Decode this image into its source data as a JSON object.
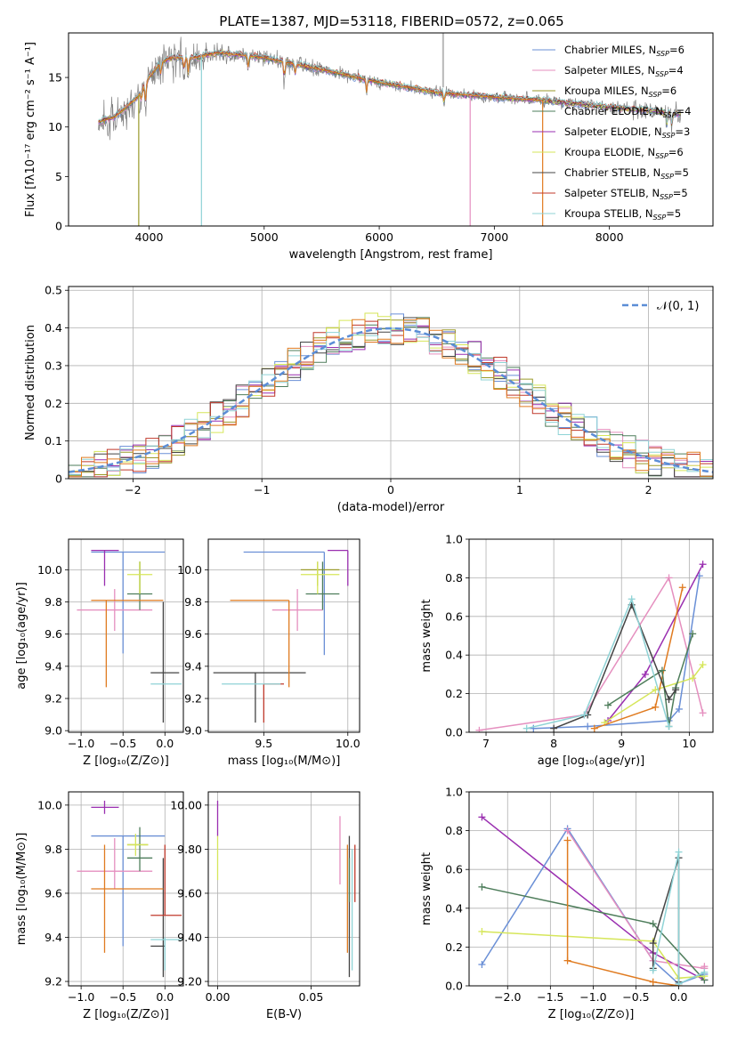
{
  "title": "PLATE=1387, MJD=53118, FIBERID=0572, z=0.065",
  "colors": {
    "CM": "#6a8fd6",
    "SM": "#e58fbf",
    "KM": "#9a9a2a",
    "CE": "#4e7d5b",
    "SE": "#9a2fb0",
    "KE": "#d6e65a",
    "CS": "#444444",
    "SS": "#c0392b",
    "KS": "#8fd3d6",
    "orange": "#e07b20",
    "dash": "#5b8dd6",
    "gray": "#808080",
    "grid": "#b0b0b0"
  },
  "legend_spec": [
    {
      "id": "CM",
      "label": "Chabrier MILES, N",
      "n": "6"
    },
    {
      "id": "SM",
      "label": "Salpeter MILES, N",
      "n": "4"
    },
    {
      "id": "KM",
      "label": "Kroupa MILES, N",
      "n": "6"
    },
    {
      "id": "CE",
      "label": "Chabrier ELODIE, N",
      "n": "4"
    },
    {
      "id": "SE",
      "label": "Salpeter ELODIE, N",
      "n": "3"
    },
    {
      "id": "KE",
      "label": "Kroupa ELODIE, N",
      "n": "6"
    },
    {
      "id": "CS",
      "label": "Chabrier STELIB, N",
      "n": "5"
    },
    {
      "id": "SS",
      "label": "Salpeter STELIB, N",
      "n": "5"
    },
    {
      "id": "KS",
      "label": "Kroupa STELIB, N",
      "n": "5"
    }
  ],
  "legend_resid": "𝒩(0, 1)",
  "chart_data": [
    {
      "id": "spec",
      "type": "line",
      "title": "PLATE=1387, MJD=53118, FIBERID=0572, z=0.065",
      "xlabel": "wavelength [Angstrom, rest frame]",
      "ylabel": "Flux [fλ10⁻¹⁷ erg cm⁻² s⁻¹ A⁻¹]",
      "xlim": [
        3300,
        8900
      ],
      "ylim": [
        0,
        19.5
      ],
      "xticks": [
        4000,
        5000,
        6000,
        7000,
        8000
      ],
      "yticks": [
        0,
        5,
        10,
        15
      ],
      "continuum": [
        [
          3560,
          10.5
        ],
        [
          3700,
          11
        ],
        [
          3900,
          13
        ],
        [
          4000,
          15
        ],
        [
          4100,
          16.5
        ],
        [
          4200,
          17
        ],
        [
          4400,
          17
        ],
        [
          4600,
          17.5
        ],
        [
          5000,
          17
        ],
        [
          5500,
          15.8
        ],
        [
          6000,
          14.5
        ],
        [
          6500,
          13.5
        ],
        [
          7000,
          13
        ],
        [
          7400,
          12.7
        ],
        [
          8000,
          12
        ],
        [
          8500,
          11.5
        ],
        [
          8620,
          11.3
        ]
      ],
      "absorptions": [
        [
          3934,
          12.5
        ],
        [
          3969,
          12.2
        ],
        [
          4102,
          15
        ],
        [
          4304,
          15.5
        ],
        [
          4340,
          15.2
        ],
        [
          4861,
          15.8
        ],
        [
          5175,
          14.5
        ],
        [
          5270,
          15.2
        ],
        [
          5890,
          13.2
        ],
        [
          6563,
          12.3
        ],
        [
          8498,
          10
        ],
        [
          8542,
          9.8
        ],
        [
          8662,
          10.1
        ]
      ],
      "spikes": [
        [
          4455,
          "KS"
        ],
        [
          3910,
          "KM"
        ],
        [
          6790,
          "SM"
        ],
        [
          7420,
          "orange"
        ]
      ]
    },
    {
      "id": "resid",
      "type": "histogram",
      "xlabel": "(data-model)/error",
      "ylabel": "Normed distribution",
      "xlim": [
        -2.5,
        2.5
      ],
      "ylim": [
        0,
        0.51
      ],
      "xticks": [
        -2,
        -1,
        0,
        1,
        2
      ],
      "yticks": [
        0,
        0.1,
        0.2,
        0.3,
        0.4,
        0.5
      ]
    },
    {
      "id": "p1",
      "type": "scatter",
      "xlabel": "Z [log₁₀(Z/Z⊙)]",
      "ylabel": "age  [log₁₀(age/yr)]",
      "xlim": [
        -1.15,
        0.22
      ],
      "ylim": [
        8.99,
        10.19
      ],
      "xticks": [
        -1.0,
        -0.5,
        0.0
      ],
      "yticks": [
        9.0,
        9.2,
        9.4,
        9.6,
        9.8,
        10.0
      ],
      "points": [
        {
          "c": "CM",
          "x": -0.5,
          "y": 10.11,
          "xe": [
            -0.88,
            0.0
          ],
          "ye": [
            9.48,
            10.11
          ]
        },
        {
          "c": "SM",
          "x": -0.6,
          "y": 9.75,
          "xe": [
            -1.05,
            -0.15
          ],
          "ye": [
            9.62,
            9.88
          ]
        },
        {
          "c": "KM",
          "x": -0.3,
          "y": 10.05,
          "xe": [
            -0.3,
            -0.3
          ],
          "ye": [
            9.85,
            10.05
          ]
        },
        {
          "c": "CE",
          "x": -0.3,
          "y": 9.85,
          "xe": [
            -0.45,
            -0.15
          ],
          "ye": [
            9.75,
            10.05
          ]
        },
        {
          "c": "SE",
          "x": -0.72,
          "y": 10.12,
          "xe": [
            -0.88,
            -0.55
          ],
          "ye": [
            9.9,
            10.12
          ]
        },
        {
          "c": "KE",
          "x": -0.3,
          "y": 9.97,
          "xe": [
            -0.45,
            -0.15
          ],
          "ye": [
            9.85,
            10.05
          ]
        },
        {
          "c": "CS",
          "x": -0.02,
          "y": 9.36,
          "xe": [
            -0.17,
            0.17
          ],
          "ye": [
            9.05,
            9.8
          ]
        },
        {
          "c": "SS",
          "x": -0.7,
          "y": 9.8,
          "xe": [
            -0.7,
            -0.7
          ],
          "ye": [
            9.8,
            9.8
          ]
        },
        {
          "c": "KS",
          "x": 0.05,
          "y": 9.29,
          "xe": [
            -0.17,
            0.2
          ],
          "ye": [
            9.29,
            9.29
          ]
        },
        {
          "c": "orange",
          "x": -0.7,
          "y": 9.81,
          "xe": [
            -0.88,
            -0.02
          ],
          "ye": [
            9.27,
            9.81
          ]
        }
      ]
    },
    {
      "id": "p2",
      "type": "scatter",
      "xlabel": "mass [log₁₀(M/M⊙)]",
      "ylabel": "",
      "xlim": [
        9.17,
        10.07
      ],
      "ylim": [
        8.99,
        10.19
      ],
      "xticks": [
        9.5,
        10.0
      ],
      "yticks": [
        9.0,
        9.2,
        9.4,
        9.6,
        9.8,
        10.0
      ],
      "points": [
        {
          "c": "CM",
          "x": 9.86,
          "y": 10.11,
          "xe": [
            9.38,
            9.86
          ],
          "ye": [
            9.47,
            10.11
          ]
        },
        {
          "c": "SM",
          "x": 9.7,
          "y": 9.75,
          "xe": [
            9.55,
            9.85
          ],
          "ye": [
            9.62,
            9.88
          ]
        },
        {
          "c": "KM",
          "x": 9.82,
          "y": 10.0,
          "xe": [
            9.72,
            9.95
          ],
          "ye": [
            9.9,
            10.05
          ]
        },
        {
          "c": "CE",
          "x": 9.85,
          "y": 9.85,
          "xe": [
            9.75,
            9.95
          ],
          "ye": [
            9.75,
            10.05
          ]
        },
        {
          "c": "SE",
          "x": 10.0,
          "y": 10.12,
          "xe": [
            9.88,
            10.0
          ],
          "ye": [
            9.9,
            10.12
          ]
        },
        {
          "c": "KE",
          "x": 9.82,
          "y": 9.97,
          "xe": [
            9.72,
            9.95
          ],
          "ye": [
            9.85,
            10.05
          ]
        },
        {
          "c": "CS",
          "x": 9.45,
          "y": 9.36,
          "xe": [
            9.2,
            9.75
          ],
          "ye": [
            9.05,
            9.36
          ]
        },
        {
          "c": "SS",
          "x": 9.5,
          "y": 9.29,
          "xe": [
            9.5,
            9.62
          ],
          "ye": [
            9.05,
            9.29
          ]
        },
        {
          "c": "KS",
          "x": 9.4,
          "y": 9.29,
          "xe": [
            9.25,
            9.6
          ],
          "ye": [
            9.29,
            9.29
          ]
        },
        {
          "c": "orange",
          "x": 9.65,
          "y": 9.81,
          "xe": [
            9.3,
            9.65
          ],
          "ye": [
            9.27,
            9.81
          ]
        }
      ]
    },
    {
      "id": "p3",
      "type": "line",
      "xlabel": "age  [log₁₀(age/yr)]",
      "ylabel": "mass weight",
      "xlim": [
        6.75,
        10.35
      ],
      "ylim": [
        0,
        1
      ],
      "xticks": [
        7,
        8,
        9,
        10
      ],
      "yticks": [
        0.0,
        0.2,
        0.4,
        0.6,
        0.8,
        1.0
      ],
      "series": [
        {
          "c": "SM",
          "x": [
            6.9,
            8.45,
            9.7,
            10.2
          ],
          "y": [
            0.01,
            0.09,
            0.8,
            0.1
          ]
        },
        {
          "c": "CM",
          "x": [
            7.7,
            8.5,
            9.7,
            9.85,
            10.15
          ],
          "y": [
            0.02,
            0.03,
            0.06,
            0.12,
            0.81
          ]
        },
        {
          "c": "SE",
          "x": [
            8.8,
            9.35,
            10.2
          ],
          "y": [
            0.06,
            0.3,
            0.87
          ]
        },
        {
          "c": "KE",
          "x": [
            8.75,
            9.5,
            10.05,
            10.2
          ],
          "y": [
            0.05,
            0.22,
            0.28,
            0.35
          ]
        },
        {
          "c": "orange",
          "x": [
            8.6,
            9.5,
            9.9
          ],
          "y": [
            0.02,
            0.13,
            0.75
          ]
        },
        {
          "c": "CE",
          "x": [
            8.8,
            9.6,
            9.7,
            9.8,
            10.05
          ],
          "y": [
            0.14,
            0.32,
            0.03,
            0.23,
            0.51
          ]
        },
        {
          "c": "CS",
          "x": [
            8.0,
            8.5,
            9.15,
            9.7,
            9.8
          ],
          "y": [
            0.02,
            0.09,
            0.66,
            0.17,
            0.22
          ]
        },
        {
          "c": "KS",
          "x": [
            7.6,
            8.45,
            9.15,
            9.7
          ],
          "y": [
            0.02,
            0.09,
            0.69,
            0.03
          ]
        }
      ]
    },
    {
      "id": "p4",
      "type": "scatter",
      "xlabel": "Z [log₁₀(Z/Z⊙)]",
      "ylabel": "mass [log₁₀(M/M⊙)]",
      "xlim": [
        -1.15,
        0.22
      ],
      "ylim": [
        9.18,
        10.06
      ],
      "xticks": [
        -1.0,
        -0.5,
        0.0
      ],
      "yticks": [
        9.2,
        9.4,
        9.6,
        9.8,
        10.0
      ],
      "points": [
        {
          "c": "CM",
          "x": -0.5,
          "y": 9.86,
          "xe": [
            -0.88,
            0.0
          ],
          "ye": [
            9.36,
            9.86
          ]
        },
        {
          "c": "SM",
          "x": -0.6,
          "y": 9.7,
          "xe": [
            -1.05,
            -0.15
          ],
          "ye": [
            9.62,
            9.85
          ]
        },
        {
          "c": "KM",
          "x": -0.38,
          "y": 9.82,
          "xe": [
            -0.45,
            -0.2
          ],
          "ye": [
            9.82,
            9.82
          ]
        },
        {
          "c": "CE",
          "x": -0.3,
          "y": 9.76,
          "xe": [
            -0.45,
            -0.15
          ],
          "ye": [
            9.7,
            9.9
          ]
        },
        {
          "c": "SE",
          "x": -0.72,
          "y": 9.99,
          "xe": [
            -0.88,
            -0.55
          ],
          "ye": [
            9.96,
            10.02
          ]
        },
        {
          "c": "KE",
          "x": -0.35,
          "y": 9.82,
          "xe": [
            -0.45,
            -0.2
          ],
          "ye": [
            9.77,
            9.87
          ]
        },
        {
          "c": "CS",
          "x": -0.02,
          "y": 9.36,
          "xe": [
            -0.17,
            0.0
          ],
          "ye": [
            9.22,
            9.76
          ]
        },
        {
          "c": "SS",
          "x": 0.0,
          "y": 9.5,
          "xe": [
            -0.17,
            0.2
          ],
          "ye": [
            9.5,
            9.82
          ]
        },
        {
          "c": "KS",
          "x": 0.0,
          "y": 9.39,
          "xe": [
            -0.17,
            0.2
          ],
          "ye": [
            9.25,
            9.4
          ]
        },
        {
          "c": "orange",
          "x": -0.72,
          "y": 9.62,
          "xe": [
            -0.88,
            -0.02
          ],
          "ye": [
            9.33,
            9.82
          ]
        }
      ]
    },
    {
      "id": "p5",
      "type": "scatter",
      "xlabel": "E(B-V)",
      "ylabel": "",
      "xlim": [
        -0.005,
        0.076
      ],
      "ylim": [
        9.18,
        10.06
      ],
      "xticks": [
        0.0,
        0.05
      ],
      "yticks": [
        9.2,
        9.4,
        9.6,
        9.8,
        10.0
      ],
      "points": [
        {
          "c": "SE",
          "x": 0.0,
          "y": 10.0,
          "xe": [
            0.0,
            0.0
          ],
          "ye": [
            9.86,
            10.02
          ]
        },
        {
          "c": "KE",
          "x": 0.0,
          "y": 9.8,
          "xe": [
            0.0,
            0.0
          ],
          "ye": [
            9.66,
            9.86
          ]
        },
        {
          "c": "SM",
          "x": 0.0655,
          "y": 9.8,
          "xe": [
            0.0655,
            0.0655
          ],
          "ye": [
            9.64,
            9.95
          ]
        },
        {
          "c": "orange",
          "x": 0.0695,
          "y": 9.6,
          "xe": [
            0.0695,
            0.0695
          ],
          "ye": [
            9.33,
            9.82
          ]
        },
        {
          "c": "CS",
          "x": 0.0705,
          "y": 9.5,
          "xe": [
            0.0705,
            0.0705
          ],
          "ye": [
            9.22,
            9.86
          ]
        },
        {
          "c": "KS",
          "x": 0.072,
          "y": 9.4,
          "xe": [
            0.072,
            0.072
          ],
          "ye": [
            9.25,
            9.8
          ]
        },
        {
          "c": "SS",
          "x": 0.0735,
          "y": 9.7,
          "xe": [
            0.0735,
            0.0735
          ],
          "ye": [
            9.56,
            9.82
          ]
        },
        {
          "c": "CE",
          "x": 0.0705,
          "y": 9.7,
          "xe": [
            0.0705,
            0.0705
          ],
          "ye": [
            9.56,
            9.76
          ]
        }
      ]
    },
    {
      "id": "p6",
      "type": "line",
      "xlabel": "Z [log₁₀(Z/Z⊙)]",
      "ylabel": "mass weight",
      "xlim": [
        -2.45,
        0.4
      ],
      "ylim": [
        0,
        1
      ],
      "xticks": [
        -2.0,
        -1.5,
        -1.0,
        -0.5,
        0.0
      ],
      "yticks": [
        0.0,
        0.2,
        0.4,
        0.6,
        0.8,
        1.0
      ],
      "series": [
        {
          "c": "SE",
          "x": [
            -2.3,
            -0.3,
            0.3
          ],
          "y": [
            0.87,
            0.17,
            0.03
          ]
        },
        {
          "c": "CM",
          "x": [
            -2.3,
            -1.3,
            -0.3,
            0.0,
            0.3
          ],
          "y": [
            0.11,
            0.81,
            0.13,
            0.01,
            0.06
          ]
        },
        {
          "c": "SM",
          "x": [
            -1.3,
            -0.3,
            0.3,
            0.3
          ],
          "y": [
            0.8,
            0.13,
            0.09,
            0.1
          ]
        },
        {
          "c": "CE",
          "x": [
            -2.3,
            -0.3,
            0.3
          ],
          "y": [
            0.51,
            0.32,
            0.03
          ]
        },
        {
          "c": "KE",
          "x": [
            -2.3,
            -0.3,
            0.0,
            0.3
          ],
          "y": [
            0.28,
            0.23,
            0.04,
            0.05
          ]
        },
        {
          "c": "orange",
          "x": [
            -1.3,
            -1.3,
            -0.3,
            0.0
          ],
          "y": [
            0.75,
            0.13,
            0.02,
            0.0
          ]
        },
        {
          "c": "CS",
          "x": [
            -0.3,
            -0.3,
            0.0,
            0.0
          ],
          "y": [
            0.09,
            0.22,
            0.66,
            0.02
          ]
        },
        {
          "c": "KS",
          "x": [
            -0.3,
            0.0,
            0.0,
            0.3
          ],
          "y": [
            0.08,
            0.69,
            0.01,
            0.07
          ]
        }
      ]
    }
  ]
}
